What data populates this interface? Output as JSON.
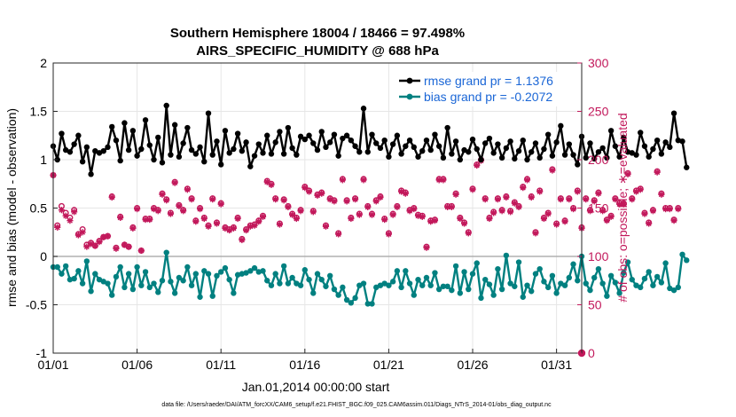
{
  "title_line1": "Southern Hemisphere 18004 / 18466 = 97.498%",
  "title_line2": "AIRS_SPECIFIC_HUMIDITY @ 688 hPa",
  "footnote": "data file: /Users/raeder/DAI/ATM_forcXX/CAM6_setup/f.e21.FHIST_BGC.f09_025.CAM6assim.011/Diags_NTrS_2014-01/obs_diag_output.nc",
  "colors": {
    "rmse": "#000000",
    "bias": "#008080",
    "obs": "#c2185b",
    "legend_text": "#1a66d6",
    "zero_line": "#b0b0b0"
  },
  "chart_data": {
    "type": "line",
    "title": "Southern Hemisphere 18004 / 18466 = 97.498%  AIRS_SPECIFIC_HUMIDITY @ 688 hPa",
    "xlabel": "Jan.01,2014 00:00:00 start",
    "ylabel": "rmse and bias (model - observation)",
    "y2label": "# of obs: o=possible; ∗=evaluated",
    "xlim": [
      0,
      31.5
    ],
    "ylim": [
      -1,
      2
    ],
    "y2lim": [
      0,
      300
    ],
    "xticks": [
      0,
      5,
      10,
      15,
      20,
      25,
      30
    ],
    "xtick_labels": [
      "01/01",
      "01/06",
      "01/11",
      "01/16",
      "01/21",
      "01/26",
      "01/31"
    ],
    "yticks": [
      -1,
      -0.5,
      0,
      0.5,
      1,
      1.5,
      2
    ],
    "ytick_labels": [
      "-1",
      "-0.5",
      "0",
      "0.5",
      "1",
      "1.5",
      "2"
    ],
    "y2ticks": [
      0,
      50,
      100,
      150,
      200,
      250,
      300
    ],
    "y2tick_labels": [
      "0",
      "50",
      "100",
      "150",
      "200",
      "250",
      "300"
    ],
    "grid": true,
    "legend_position": "top-right",
    "time_step_days": 0.25,
    "series": [
      {
        "name": "rmse grand pr = 1.1376",
        "axis": "left",
        "marker": "filled-circle",
        "values": [
          1.14,
          1.0,
          1.27,
          1.1,
          1.08,
          1.16,
          1.25,
          0.98,
          1.13,
          0.85,
          1.09,
          1.07,
          1.09,
          1.13,
          1.34,
          1.2,
          0.99,
          1.38,
          1.1,
          1.3,
          1.04,
          1.11,
          1.41,
          1.15,
          1.0,
          1.23,
          0.97,
          1.56,
          1.05,
          1.36,
          1.03,
          1.17,
          1.33,
          1.1,
          1.06,
          1.13,
          0.98,
          1.48,
          1.05,
          1.19,
          0.95,
          1.3,
          1.07,
          1.11,
          1.27,
          1.09,
          1.18,
          0.93,
          1.04,
          1.16,
          1.07,
          1.25,
          1.06,
          1.18,
          1.29,
          1.06,
          1.33,
          1.12,
          1.05,
          1.24,
          1.21,
          1.25,
          1.17,
          1.1,
          1.29,
          1.13,
          1.18,
          1.26,
          1.04,
          1.22,
          1.25,
          1.2,
          1.14,
          1.08,
          1.53,
          1.08,
          1.26,
          1.17,
          1.12,
          1.2,
          1.03,
          1.16,
          1.25,
          1.06,
          1.14,
          1.2,
          1.13,
          1.03,
          1.09,
          1.2,
          1.1,
          1.26,
          1.14,
          1.02,
          1.33,
          1.06,
          1.19,
          1.0,
          1.1,
          1.08,
          1.21,
          1.11,
          1.0,
          1.17,
          1.22,
          1.07,
          1.16,
          1.02,
          1.12,
          1.19,
          1.01,
          1.09,
          1.2,
          1.0,
          1.08,
          1.17,
          1.02,
          1.11,
          1.26,
          1.04,
          1.18,
          1.35,
          1.05,
          1.16,
          1.05,
          0.95,
          1.24,
          1.02,
          1.17,
          1.01,
          1.08,
          1.12,
          1.02,
          1.3,
          1.14,
          1.03,
          1.23,
          1.08,
          1.07,
          1.05,
          1.28,
          1.14,
          1.03,
          1.11,
          1.2,
          1.06,
          1.18,
          1.13,
          1.48,
          1.2,
          1.19,
          0.92
        ]
      },
      {
        "name": "bias grand pr = -0.2072",
        "axis": "left",
        "marker": "filled-circle",
        "values": [
          -0.11,
          -0.11,
          -0.18,
          -0.1,
          -0.24,
          -0.23,
          -0.15,
          -0.28,
          -0.05,
          -0.36,
          -0.18,
          -0.24,
          -0.26,
          -0.28,
          -0.4,
          -0.21,
          -0.11,
          -0.32,
          -0.18,
          -0.34,
          -0.11,
          -0.3,
          -0.16,
          -0.32,
          -0.28,
          -0.37,
          -0.25,
          0.04,
          -0.26,
          -0.38,
          -0.22,
          -0.25,
          -0.11,
          -0.3,
          -0.18,
          -0.42,
          -0.15,
          -0.18,
          -0.41,
          -0.2,
          -0.16,
          -0.12,
          -0.24,
          -0.38,
          -0.19,
          -0.18,
          -0.17,
          -0.15,
          -0.12,
          -0.16,
          -0.15,
          -0.25,
          -0.3,
          -0.18,
          -0.28,
          -0.1,
          -0.28,
          -0.22,
          -0.28,
          -0.3,
          -0.14,
          -0.24,
          -0.38,
          -0.18,
          -0.24,
          -0.31,
          -0.2,
          -0.34,
          -0.4,
          -0.32,
          -0.45,
          -0.48,
          -0.43,
          -0.3,
          -0.28,
          -0.49,
          -0.49,
          -0.32,
          -0.3,
          -0.28,
          -0.3,
          -0.26,
          -0.15,
          -0.32,
          -0.15,
          -0.28,
          -0.4,
          -0.24,
          -0.3,
          -0.22,
          -0.3,
          -0.17,
          -0.34,
          -0.31,
          -0.31,
          -0.35,
          -0.1,
          -0.38,
          -0.16,
          -0.34,
          -0.18,
          -0.07,
          -0.43,
          -0.24,
          -0.29,
          -0.4,
          -0.13,
          -0.34,
          0.01,
          -0.28,
          -0.31,
          -0.06,
          -0.42,
          -0.3,
          -0.36,
          -0.18,
          -0.13,
          -0.26,
          -0.32,
          -0.2,
          -0.38,
          -0.28,
          -0.3,
          -0.22,
          -0.08,
          -0.25,
          0.0,
          -0.28,
          -0.35,
          -0.22,
          -0.13,
          -0.28,
          -0.41,
          -0.2,
          -0.27,
          -0.38,
          -0.17,
          -0.06,
          -0.24,
          -0.3,
          -0.32,
          -0.23,
          -0.16,
          -0.3,
          -0.21,
          -0.27,
          -0.07,
          -0.33,
          -0.35,
          -0.32,
          0.02,
          -0.04
        ]
      },
      {
        "name": "possible",
        "axis": "right",
        "marker": "open-circle",
        "values": [
          184,
          132,
          152,
          145,
          140,
          148,
          123,
          128,
          112,
          114,
          111,
          116,
          120,
          121,
          162,
          109,
          141,
          112,
          110,
          130,
          150,
          106,
          139,
          139,
          150,
          148,
          165,
          159,
          145,
          177,
          153,
          148,
          170,
          160,
          137,
          150,
          140,
          132,
          160,
          135,
          155,
          130,
          128,
          130,
          140,
          118,
          128,
          132,
          133,
          137,
          142,
          178,
          175,
          160,
          134,
          159,
          152,
          144,
          140,
          148,
          172,
          168,
          147,
          164,
          166,
          132,
          160,
          158,
          124,
          180,
          158,
          140,
          160,
          144,
          180,
          152,
          144,
          158,
          162,
          139,
          124,
          144,
          152,
          168,
          166,
          148,
          150,
          143,
          142,
          110,
          137,
          138,
          180,
          180,
          152,
          152,
          165,
          140,
          135,
          125,
          170,
          195,
          200,
          160,
          140,
          146,
          160,
          148,
          162,
          147,
          156,
          152,
          172,
          180,
          162,
          125,
          168,
          140,
          145,
          190,
          134,
          160,
          137,
          160,
          150,
          168,
          130,
          160,
          148,
          158,
          166,
          148,
          138,
          142,
          160,
          155,
          155,
          186,
          160,
          168,
          170,
          145,
          135,
          148,
          188,
          165,
          150,
          150,
          138,
          150
        ]
      },
      {
        "name": "evaluated",
        "axis": "right",
        "marker": "asterisk",
        "values": [
          184,
          130,
          148,
          142,
          137,
          146,
          122,
          125,
          110,
          113,
          111,
          115,
          120,
          121,
          161,
          108,
          140,
          112,
          110,
          129,
          149,
          106,
          138,
          138,
          149,
          147,
          164,
          158,
          144,
          176,
          152,
          147,
          169,
          159,
          136,
          149,
          139,
          131,
          159,
          134,
          154,
          129,
          127,
          129,
          139,
          117,
          127,
          131,
          132,
          136,
          141,
          177,
          174,
          159,
          133,
          158,
          151,
          143,
          139,
          147,
          171,
          167,
          146,
          163,
          165,
          131,
          159,
          157,
          123,
          179,
          157,
          139,
          159,
          143,
          179,
          151,
          143,
          157,
          161,
          138,
          123,
          143,
          151,
          167,
          165,
          147,
          149,
          142,
          141,
          109,
          136,
          137,
          179,
          179,
          151,
          151,
          164,
          139,
          134,
          124,
          169,
          194,
          199,
          159,
          139,
          145,
          159,
          147,
          161,
          146,
          155,
          151,
          171,
          179,
          161,
          124,
          167,
          139,
          144,
          189,
          133,
          159,
          136,
          159,
          149,
          167,
          129,
          159,
          147,
          157,
          165,
          147,
          137,
          141,
          159,
          154,
          154,
          185,
          159,
          167,
          169,
          144,
          134,
          147,
          187,
          164,
          149,
          149,
          137,
          149
        ]
      }
    ],
    "legend": [
      "rmse grand pr = 1.1376",
      "bias grand pr = -0.2072"
    ]
  }
}
